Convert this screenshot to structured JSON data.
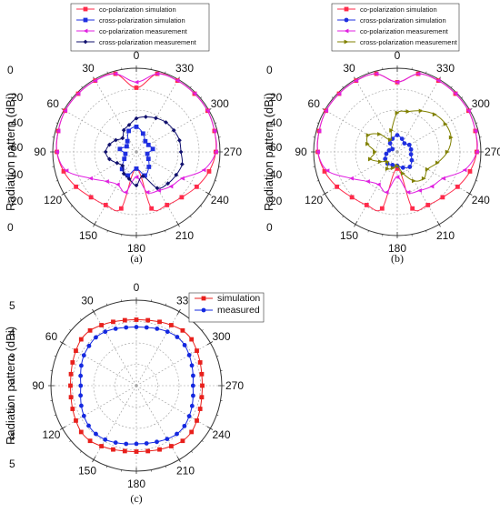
{
  "chart_data": [
    {
      "type": "polar-line",
      "panel_label": "(a)",
      "ylabel": "Radiation pattern (dBi)",
      "radial_ticks_top": [
        "0",
        "-20",
        "-40",
        "-60"
      ],
      "radial_ticks_bottom": [
        "-40",
        "-20",
        "0"
      ],
      "angle_labels": [
        "0",
        "30",
        "60",
        "90",
        "120",
        "150",
        "180",
        "210",
        "240",
        "270",
        "300",
        "330"
      ],
      "series": [
        {
          "name": "co-polarization simulation",
          "color": "#ff2a4a",
          "marker": "square",
          "angles": [
            0,
            15,
            30,
            45,
            60,
            75,
            90,
            105,
            120,
            135,
            150,
            165,
            180,
            195,
            210,
            225,
            240,
            255,
            270,
            285,
            300,
            315,
            330,
            345
          ],
          "values": [
            -14,
            -2,
            -1,
            -1,
            -1,
            -2,
            -3,
            -6,
            -10,
            -14,
            -16,
            -18,
            -48,
            -18,
            -16,
            -14,
            -10,
            -6,
            -3,
            -2,
            -1,
            -1,
            -1,
            -2
          ]
        },
        {
          "name": "cross-polarization simulation",
          "color": "#1f2fe0",
          "marker": "square",
          "angles": [
            0,
            20,
            40,
            60,
            80,
            100,
            120,
            140,
            160,
            180,
            200,
            220,
            240,
            260,
            280,
            300,
            320,
            340
          ],
          "values": [
            -42,
            -44,
            -50,
            -52,
            -48,
            -52,
            -50,
            -44,
            -42,
            -48,
            -42,
            -46,
            -50,
            -52,
            -48,
            -50,
            -50,
            -46
          ]
        },
        {
          "name": "co-polarization measurement",
          "color": "#e020e0",
          "marker": "triangle-left",
          "angles": [
            0,
            15,
            30,
            45,
            60,
            75,
            90,
            105,
            120,
            135,
            150,
            165,
            180,
            195,
            210,
            225,
            240,
            255,
            270,
            285,
            300,
            315,
            330,
            345
          ],
          "values": [
            -10,
            -2,
            -1,
            -1,
            -1,
            -2,
            -3,
            -8,
            -22,
            -30,
            -33,
            -30,
            -42,
            -30,
            -28,
            -25,
            -22,
            -10,
            -3,
            -2,
            -1,
            -1,
            -1,
            -2
          ]
        },
        {
          "name": "cross-polarization measurement",
          "color": "#10106e",
          "marker": "diamond",
          "angles": [
            0,
            15,
            30,
            45,
            60,
            75,
            90,
            105,
            120,
            135,
            150,
            165,
            180,
            195,
            210,
            225,
            240,
            255,
            270,
            285,
            300,
            315,
            330,
            345
          ],
          "values": [
            -36,
            -40,
            -42,
            -46,
            -43,
            -40,
            -38,
            -40,
            -44,
            -46,
            -42,
            -40,
            -36,
            -42,
            -30,
            -28,
            -27,
            -26,
            -28,
            -28,
            -29,
            -30,
            -32,
            -34
          ]
        }
      ]
    },
    {
      "type": "polar-line",
      "panel_label": "(b)",
      "ylabel": "Radiation pattern (dBi)",
      "radial_ticks_top": [
        "0",
        "-20",
        "-40",
        "-60"
      ],
      "radial_ticks_bottom": [
        "-40",
        "-20",
        "0"
      ],
      "angle_labels": [
        "0",
        "30",
        "60",
        "90",
        "120",
        "150",
        "180",
        "210",
        "240",
        "270",
        "300",
        "330"
      ],
      "series": [
        {
          "name": "co-polarization simulation",
          "color": "#ff2a4a",
          "marker": "square",
          "angles": [
            0,
            15,
            30,
            45,
            60,
            75,
            90,
            105,
            120,
            135,
            150,
            165,
            180,
            195,
            210,
            225,
            240,
            255,
            270,
            285,
            300,
            315,
            330,
            345
          ],
          "values": [
            -10,
            -2,
            -1,
            -1,
            -1,
            -2,
            -3,
            -6,
            -10,
            -14,
            -16,
            -18,
            -48,
            -18,
            -16,
            -14,
            -10,
            -6,
            -3,
            -2,
            -1,
            -1,
            -1,
            -2
          ]
        },
        {
          "name": "cross-polarization simulation",
          "color": "#1f2fe0",
          "marker": "circle",
          "angles": [
            0,
            20,
            40,
            60,
            80,
            100,
            120,
            140,
            160,
            180,
            200,
            220,
            240,
            260,
            280,
            300,
            320,
            340
          ],
          "values": [
            -48,
            -50,
            -52,
            -56,
            -54,
            -52,
            -50,
            -49,
            -50,
            -50,
            -48,
            -46,
            -48,
            -50,
            -50,
            -50,
            -52,
            -50
          ]
        },
        {
          "name": "co-polarization measurement",
          "color": "#e020e0",
          "marker": "triangle-left",
          "angles": [
            0,
            15,
            30,
            45,
            60,
            75,
            90,
            105,
            120,
            135,
            150,
            165,
            180,
            195,
            210,
            225,
            240,
            255,
            270,
            285,
            300,
            315,
            330,
            345
          ],
          "values": [
            -10,
            -2,
            -1,
            -1,
            -1,
            -2,
            -3,
            -8,
            -22,
            -30,
            -33,
            -30,
            -42,
            -30,
            -28,
            -25,
            -22,
            -10,
            -3,
            -2,
            -1,
            -1,
            -1,
            -2
          ]
        },
        {
          "name": "cross-polarization measurement",
          "color": "#808000",
          "marker": "triangle-right",
          "angles": [
            0,
            15,
            30,
            45,
            60,
            75,
            90,
            105,
            120,
            135,
            150,
            165,
            180,
            195,
            210,
            225,
            240,
            255,
            270,
            285,
            300,
            315,
            330,
            345
          ],
          "values": [
            -32,
            -44,
            -50,
            -42,
            -36,
            -38,
            -44,
            -40,
            -46,
            -50,
            -46,
            -48,
            -50,
            -44,
            -36,
            -33,
            -35,
            -30,
            -24,
            -20,
            -20,
            -22,
            -26,
            -30
          ]
        }
      ]
    },
    {
      "type": "polar-line",
      "panel_label": "(c)",
      "ylabel": "Radiation pattern (dBi)",
      "radial_ticks_top": [
        "5",
        "4",
        "3",
        "2"
      ],
      "radial_ticks_bottom": [
        "3",
        "4",
        "5"
      ],
      "angle_labels": [
        "0",
        "30",
        "60",
        "90",
        "120",
        "150",
        "180",
        "210",
        "240",
        "270",
        "300",
        "330"
      ],
      "series": [
        {
          "name": "simulation",
          "color": "#e8201c",
          "marker": "square",
          "angles": [
            0,
            10,
            20,
            30,
            40,
            50,
            60,
            70,
            80,
            90,
            100,
            110,
            120,
            130,
            140,
            150,
            160,
            170,
            180,
            190,
            200,
            210,
            220,
            230,
            240,
            250,
            260,
            270,
            280,
            290,
            300,
            310,
            320,
            330,
            340,
            350
          ],
          "values": [
            4.2,
            4.22,
            4.28,
            4.36,
            4.45,
            4.45,
            4.36,
            4.28,
            4.22,
            4.2,
            4.22,
            4.28,
            4.36,
            4.45,
            4.45,
            4.36,
            4.28,
            4.22,
            4.2,
            4.22,
            4.28,
            4.36,
            4.45,
            4.45,
            4.36,
            4.28,
            4.22,
            4.2,
            4.22,
            4.28,
            4.36,
            4.45,
            4.45,
            4.36,
            4.28,
            4.22
          ]
        },
        {
          "name": "measured",
          "color": "#1428e0",
          "marker": "circle",
          "angles": [
            0,
            10,
            20,
            30,
            40,
            50,
            60,
            70,
            80,
            90,
            100,
            110,
            120,
            130,
            140,
            150,
            160,
            170,
            180,
            190,
            200,
            210,
            220,
            230,
            240,
            250,
            260,
            270,
            280,
            290,
            300,
            310,
            320,
            330,
            340,
            350
          ],
          "values": [
            3.9,
            3.92,
            3.98,
            4.05,
            4.08,
            4.03,
            3.98,
            3.9,
            3.82,
            3.78,
            3.82,
            3.9,
            3.98,
            4.05,
            4.08,
            4.05,
            3.98,
            3.92,
            3.88,
            3.9,
            3.95,
            4.02,
            4.08,
            4.07,
            4.0,
            3.93,
            3.86,
            3.82,
            3.86,
            3.92,
            4.0,
            4.08,
            4.1,
            4.05,
            3.98,
            3.92
          ]
        }
      ]
    }
  ]
}
